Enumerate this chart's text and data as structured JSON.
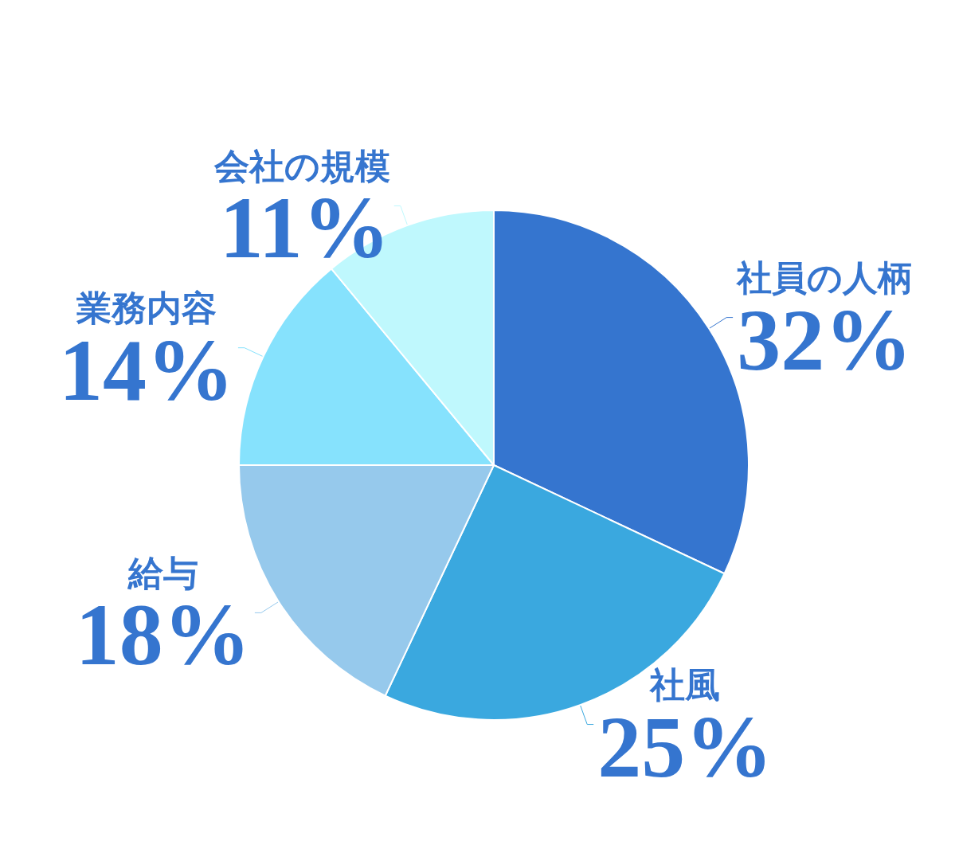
{
  "chart_data": {
    "type": "pie",
    "categories": [
      "社員の人柄",
      "社風",
      "給与",
      "業務内容",
      "会社の規模"
    ],
    "values": [
      32,
      25,
      18,
      14,
      11
    ],
    "value_labels": [
      "32%",
      "25%",
      "18%",
      "14%",
      "11%"
    ],
    "colors": [
      "#3575cf",
      "#3aa8df",
      "#96c9ec",
      "#86e2fd",
      "#bff8fd"
    ],
    "legend": false
  }
}
